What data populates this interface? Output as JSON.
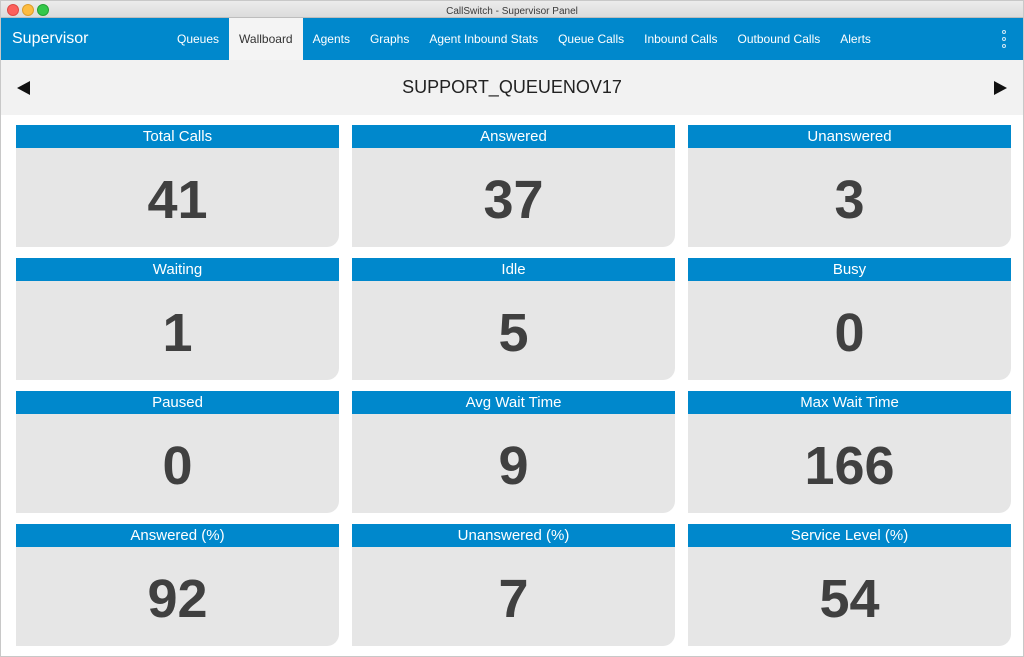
{
  "window": {
    "title": "CallSwitch - Supervisor Panel"
  },
  "navbar": {
    "brand": "Supervisor",
    "items": [
      {
        "label": "Queues"
      },
      {
        "label": "Wallboard"
      },
      {
        "label": "Agents"
      },
      {
        "label": "Graphs"
      },
      {
        "label": "Agent Inbound Stats"
      },
      {
        "label": "Queue Calls"
      },
      {
        "label": "Inbound Calls"
      },
      {
        "label": "Outbound Calls"
      },
      {
        "label": "Alerts"
      }
    ],
    "active": "Wallboard",
    "menu_icon": "more-vertical-icon"
  },
  "queue": {
    "name": "SUPPORT_QUEUENOV17",
    "prev_icon": "arrow-left-icon",
    "next_icon": "arrow-right-icon"
  },
  "tiles": [
    {
      "label": "Total Calls",
      "value": "41"
    },
    {
      "label": "Answered",
      "value": "37"
    },
    {
      "label": "Unanswered",
      "value": "3"
    },
    {
      "label": "Waiting",
      "value": "1"
    },
    {
      "label": "Idle",
      "value": "5"
    },
    {
      "label": "Busy",
      "value": "0"
    },
    {
      "label": "Paused",
      "value": "0"
    },
    {
      "label": "Avg Wait Time",
      "value": "9"
    },
    {
      "label": "Max Wait Time",
      "value": "166"
    },
    {
      "label": "Answered (%)",
      "value": "92"
    },
    {
      "label": "Unanswered (%)",
      "value": "7"
    },
    {
      "label": "Service Level (%)",
      "value": "54"
    }
  ],
  "colors": {
    "accent": "#0088cc",
    "tile_bg": "#e6e6e6",
    "value_text": "#404040"
  }
}
